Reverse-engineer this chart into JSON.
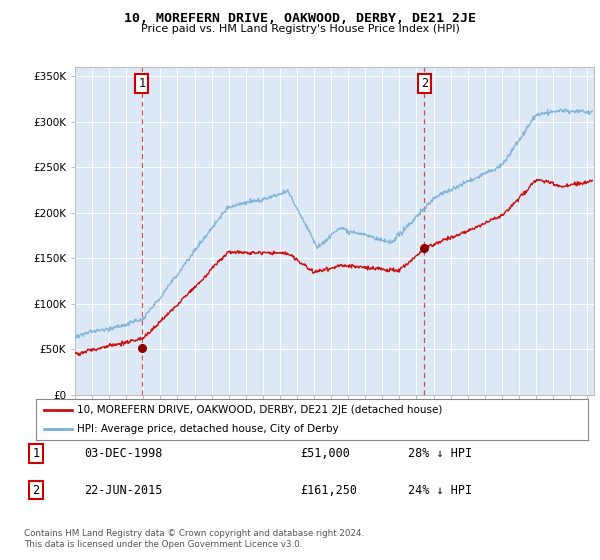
{
  "title": "10, MOREFERN DRIVE, OAKWOOD, DERBY, DE21 2JE",
  "subtitle": "Price paid vs. HM Land Registry's House Price Index (HPI)",
  "ylabel_ticks": [
    "£0",
    "£50K",
    "£100K",
    "£150K",
    "£200K",
    "£250K",
    "£300K",
    "£350K"
  ],
  "ytick_values": [
    0,
    50000,
    100000,
    150000,
    200000,
    250000,
    300000,
    350000
  ],
  "ylim": [
    0,
    360000
  ],
  "xlim_start": 1995.0,
  "xlim_end": 2025.4,
  "sale1_date": 1998.92,
  "sale1_price": 51000,
  "sale1_label": "1",
  "sale2_date": 2015.47,
  "sale2_price": 161250,
  "sale2_label": "2",
  "legend_line1": "10, MOREFERN DRIVE, OAKWOOD, DERBY, DE21 2JE (detached house)",
  "legend_line2": "HPI: Average price, detached house, City of Derby",
  "table_row1": [
    "1",
    "03-DEC-1998",
    "£51,000",
    "28% ↓ HPI"
  ],
  "table_row2": [
    "2",
    "22-JUN-2015",
    "£161,250",
    "24% ↓ HPI"
  ],
  "footer": "Contains HM Land Registry data © Crown copyright and database right 2024.\nThis data is licensed under the Open Government Licence v3.0.",
  "hpi_color": "#7ab0d8",
  "price_color": "#cc1111",
  "sale_marker_color": "#8b0000",
  "vline_color": "#cc3333",
  "background_color": "#dce8f5",
  "box_color": "#cc0000"
}
